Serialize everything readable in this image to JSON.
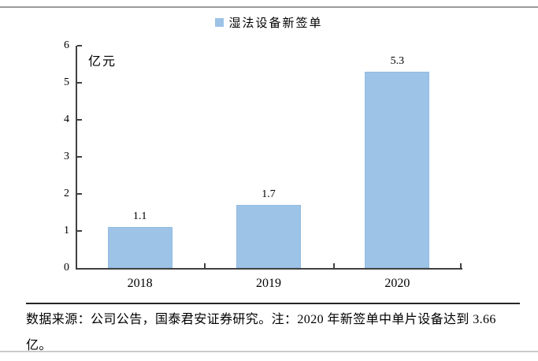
{
  "chart_data": {
    "type": "bar",
    "title": "",
    "legend_entries": [
      "湿法设备新签单"
    ],
    "legend_position": "top-center",
    "unit_label": "亿元",
    "categories": [
      "2018",
      "2019",
      "2020"
    ],
    "values": [
      1.1,
      1.7,
      5.3
    ],
    "value_labels": [
      "1.1",
      "1.7",
      "5.3"
    ],
    "ylim": [
      0,
      6
    ],
    "yticks": [
      0,
      1,
      2,
      3,
      4,
      5,
      6
    ],
    "grid": false,
    "bar_color": "#9DC3E6",
    "bar_border_color": "#93bce2",
    "axis_color": "#404040",
    "text_color": "#000000"
  },
  "footer": {
    "note": "数据来源：公司公告，国泰君安证券研究。注：2020 年新签单中单片设备达到 3.66 亿。"
  }
}
